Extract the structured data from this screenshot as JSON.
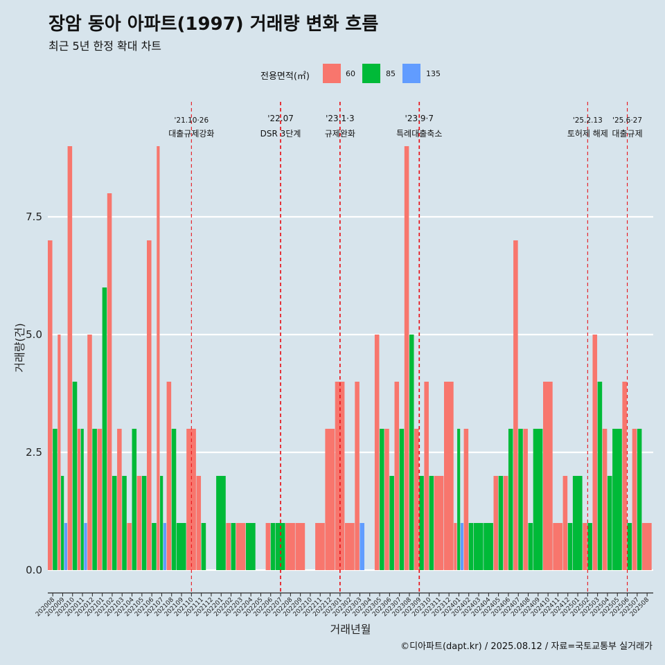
{
  "title": "장암 동아 아파트(1997) 거래량 변화 흐름",
  "subtitle": "최근 5년 한정 확대 차트",
  "caption": "©디아파트(dapt.kr) / 2025.08.12 / 자료=국토교통부 실거래가",
  "legend": {
    "title": "전용면적(㎡)",
    "items": [
      {
        "label": "60",
        "color": "#F8766D"
      },
      {
        "label": "85",
        "color": "#00BA38"
      },
      {
        "label": "135",
        "color": "#619CFF"
      }
    ]
  },
  "chart_data": {
    "type": "bar",
    "xlabel": "거래년월",
    "ylabel": "거래량(건)",
    "ylim": [
      0,
      9.5
    ],
    "yticks": [
      "0.0",
      "2.5",
      "5.0",
      "7.5"
    ],
    "grid": true,
    "legend_position": "top",
    "categories": [
      "202008",
      "202009",
      "202010",
      "202011",
      "202012",
      "202101",
      "202102",
      "202103",
      "202104",
      "202105",
      "202106",
      "202107",
      "202108",
      "202109",
      "202110",
      "202111",
      "202112",
      "202201",
      "202202",
      "202203",
      "202204",
      "202205",
      "202206",
      "202207",
      "202208",
      "202209",
      "202210",
      "202211",
      "202212",
      "202301",
      "202302",
      "202303",
      "202304",
      "202305",
      "202306",
      "202307",
      "202308",
      "202309",
      "202310",
      "202311",
      "202312",
      "202401",
      "202402",
      "202403",
      "202404",
      "202405",
      "202406",
      "202407",
      "202408",
      "202409",
      "202410",
      "202411",
      "202412",
      "202501",
      "202502",
      "202503",
      "202504",
      "202505",
      "202506",
      "202507",
      "202508"
    ],
    "series": [
      {
        "name": "60",
        "color": "#F8766D",
        "values": [
          7,
          5,
          9,
          3,
          5,
          3,
          8,
          3,
          1,
          2,
          7,
          9,
          4,
          0,
          3,
          2,
          0,
          0,
          1,
          1,
          0,
          0,
          1,
          0,
          1,
          1,
          0,
          1,
          3,
          4,
          1,
          4,
          0,
          5,
          3,
          4,
          9,
          3,
          4,
          2,
          4,
          1,
          3,
          0,
          0,
          2,
          2,
          7,
          3,
          0,
          4,
          1,
          2,
          0,
          1,
          5,
          3,
          0,
          4,
          3,
          1
        ]
      },
      {
        "name": "85",
        "color": "#00BA38",
        "values": [
          3,
          2,
          4,
          3,
          3,
          6,
          2,
          2,
          3,
          2,
          1,
          2,
          3,
          1,
          0,
          1,
          0,
          2,
          1,
          0,
          1,
          0,
          1,
          1,
          0,
          0,
          0,
          0,
          0,
          0,
          0,
          0,
          0,
          3,
          2,
          3,
          5,
          2,
          2,
          0,
          0,
          3,
          1,
          1,
          1,
          2,
          3,
          3,
          1,
          3,
          0,
          0,
          1,
          2,
          1,
          4,
          2,
          3,
          1,
          3,
          0
        ]
      },
      {
        "name": "135",
        "color": "#619CFF",
        "values": [
          0,
          1,
          0,
          1,
          0,
          0,
          0,
          0,
          0,
          0,
          0,
          1,
          0,
          0,
          0,
          0,
          0,
          0,
          0,
          0,
          0,
          0,
          0,
          0,
          0,
          0,
          0,
          0,
          0,
          0,
          0,
          1,
          0,
          0,
          0,
          0,
          0,
          0,
          0,
          0,
          0,
          1,
          0,
          0,
          0,
          0,
          0,
          0,
          0,
          0,
          0,
          0,
          0,
          0,
          0,
          0,
          0,
          0,
          0,
          0,
          0
        ]
      }
    ],
    "annotations": [
      {
        "position": 14,
        "date": "'21.10·26",
        "label": "대출규제강화"
      },
      {
        "position": 23,
        "date": "'22.07",
        "label": "DSR 3단계"
      },
      {
        "position": 29,
        "date": "'23.1·3",
        "label": "규제완화"
      },
      {
        "position": 37,
        "date": "'23.9·7",
        "label": "특례대출축소"
      },
      {
        "position": 54,
        "date": "'25.2.13",
        "label": "토허제 해제"
      },
      {
        "position": 58,
        "date": "'25.6·27",
        "label": "대출규제"
      }
    ]
  }
}
